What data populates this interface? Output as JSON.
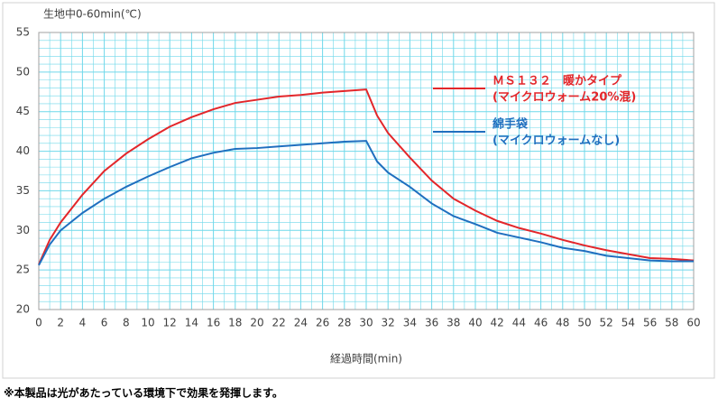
{
  "chart_data": {
    "type": "line",
    "title": "生地中0-60min(℃)",
    "x_label": "経過時間(min)",
    "x": [
      0,
      1,
      2,
      4,
      6,
      8,
      10,
      12,
      14,
      16,
      18,
      20,
      22,
      24,
      26,
      28,
      30,
      31,
      32,
      34,
      36,
      38,
      40,
      42,
      44,
      46,
      48,
      50,
      52,
      54,
      56,
      58,
      60
    ],
    "series": [
      {
        "name": [
          "ＭＳ１３２　暖かタイプ",
          "(マイクロウォーム20%混)"
        ],
        "color": "#e3262a",
        "values": [
          25.7,
          28.8,
          31,
          34.5,
          37.5,
          39.7,
          41.5,
          43.1,
          44.3,
          45.3,
          46.1,
          46.5,
          46.9,
          47.1,
          47.4,
          47.6,
          47.8,
          44.5,
          42.3,
          39.2,
          36.3,
          34,
          32.5,
          31.2,
          30.3,
          29.6,
          28.8,
          28.1,
          27.5,
          27,
          26.5,
          26.4,
          26.2
        ]
      },
      {
        "name": [
          "綿手袋",
          "(マイクロウォームなし)"
        ],
        "color": "#1f6fbf",
        "values": [
          25.6,
          28.2,
          30,
          32.2,
          34,
          35.5,
          36.8,
          38,
          39.1,
          39.8,
          40.3,
          40.4,
          40.6,
          40.8,
          41,
          41.2,
          41.3,
          38.7,
          37.3,
          35.5,
          33.4,
          31.8,
          30.8,
          29.7,
          29.1,
          28.5,
          27.8,
          27.4,
          26.8,
          26.5,
          26.2,
          26.1,
          26.1
        ]
      }
    ],
    "xlim": [
      0,
      60
    ],
    "xticks": [
      0,
      2,
      4,
      6,
      8,
      10,
      12,
      14,
      16,
      18,
      20,
      22,
      24,
      26,
      28,
      30,
      32,
      34,
      36,
      38,
      40,
      42,
      44,
      46,
      48,
      50,
      52,
      54,
      56,
      58,
      60
    ],
    "ylim": [
      20,
      55
    ],
    "yticks": [
      20,
      25,
      30,
      35,
      40,
      45,
      50,
      55
    ],
    "grid": true,
    "legend": "right",
    "footnote": "※本製品は光があたっている環境下で効果を発揮します。"
  }
}
